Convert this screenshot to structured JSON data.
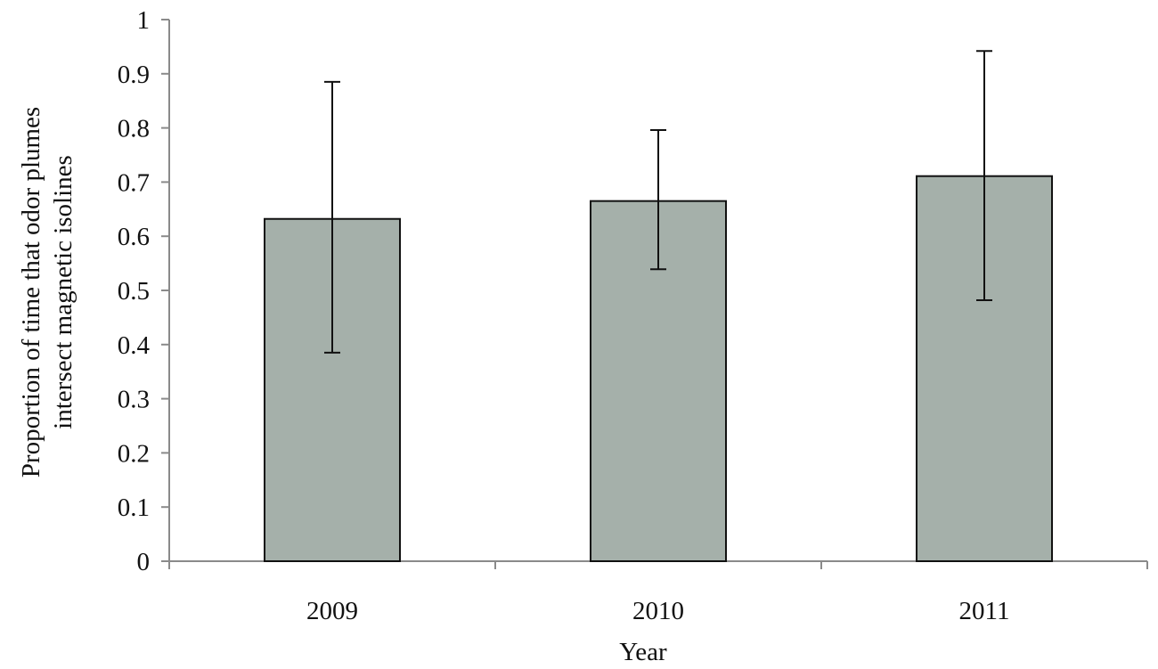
{
  "chart_data": {
    "type": "bar",
    "categories": [
      "2009",
      "2010",
      "2011"
    ],
    "series": [
      {
        "values": [
          0.632,
          0.665,
          0.711
        ],
        "error_low": [
          0.385,
          0.539,
          0.482
        ],
        "error_high": [
          0.885,
          0.796,
          0.942
        ]
      }
    ],
    "title": "",
    "xlabel": "Year",
    "ylabel_line1": "Proportion of time  that odor plumes",
    "ylabel_line2": "intersect magnetic isolines",
    "ylim": [
      0,
      1
    ],
    "yticks": [
      "0",
      "0.1",
      "0.2",
      "0.3",
      "0.4",
      "0.5",
      "0.6",
      "0.7",
      "0.8",
      "0.9",
      "1"
    ],
    "grid": false,
    "legend": "none",
    "bar_color": "#a5b0aa",
    "bar_edge_color": "#111111",
    "axis_color": "#8a8a8a"
  }
}
